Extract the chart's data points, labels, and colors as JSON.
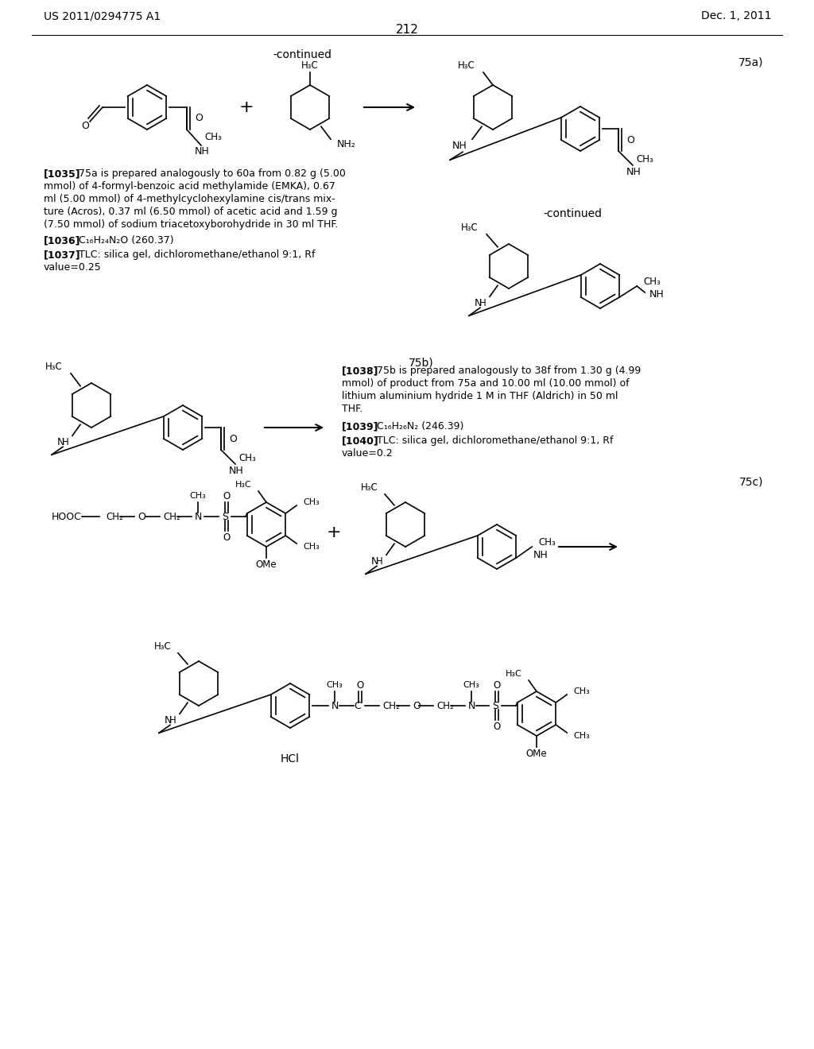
{
  "page_number": "212",
  "patent_number": "US 2011/0294775 A1",
  "patent_date": "Dec. 1, 2011",
  "background_color": "#ffffff",
  "continued_label": "-continued",
  "label_75a": "75a)",
  "label_75b": "75b)",
  "label_75c": "75c)",
  "para_1035": "[1035]   75a is prepared analogously to 60a from 0.82 g (5.00\nmmol) of 4-formyl-benzoic acid methylamide (EMKA), 0.67\nml (5.00 mmol) of 4-methylcyclohexylamine cis/trans mix-\nture (Acros), 0.37 ml (6.50 mmol) of acetic acid and 1.59 g\n(7.50 mmol) of sodium triacetoxyborohydride in 30 ml THF.",
  "para_1036": "[1036]   C₁₆H₂₄N₂O (260.37)",
  "para_1037": "[1037]   TLC: silica gel, dichloromethane/ethanol 9:1, Rf\nvalue=0.25",
  "para_1038": "[1038]   75b is prepared analogously to 38f from 1.30 g (4.99\nmmol) of product from 75a and 10.00 ml (10.00 mmol) of\nlithium aluminium hydride 1 M in THF (Aldrich) in 50 ml\nTHF.",
  "para_1039": "[1039]   C₁₆H₂₆N₂ (246.39)",
  "para_1040": "[1040]   TLC: silica gel, dichloromethane/ethanol 9:1, Rf\nvalue=0.2",
  "hcl_label": "HCl"
}
